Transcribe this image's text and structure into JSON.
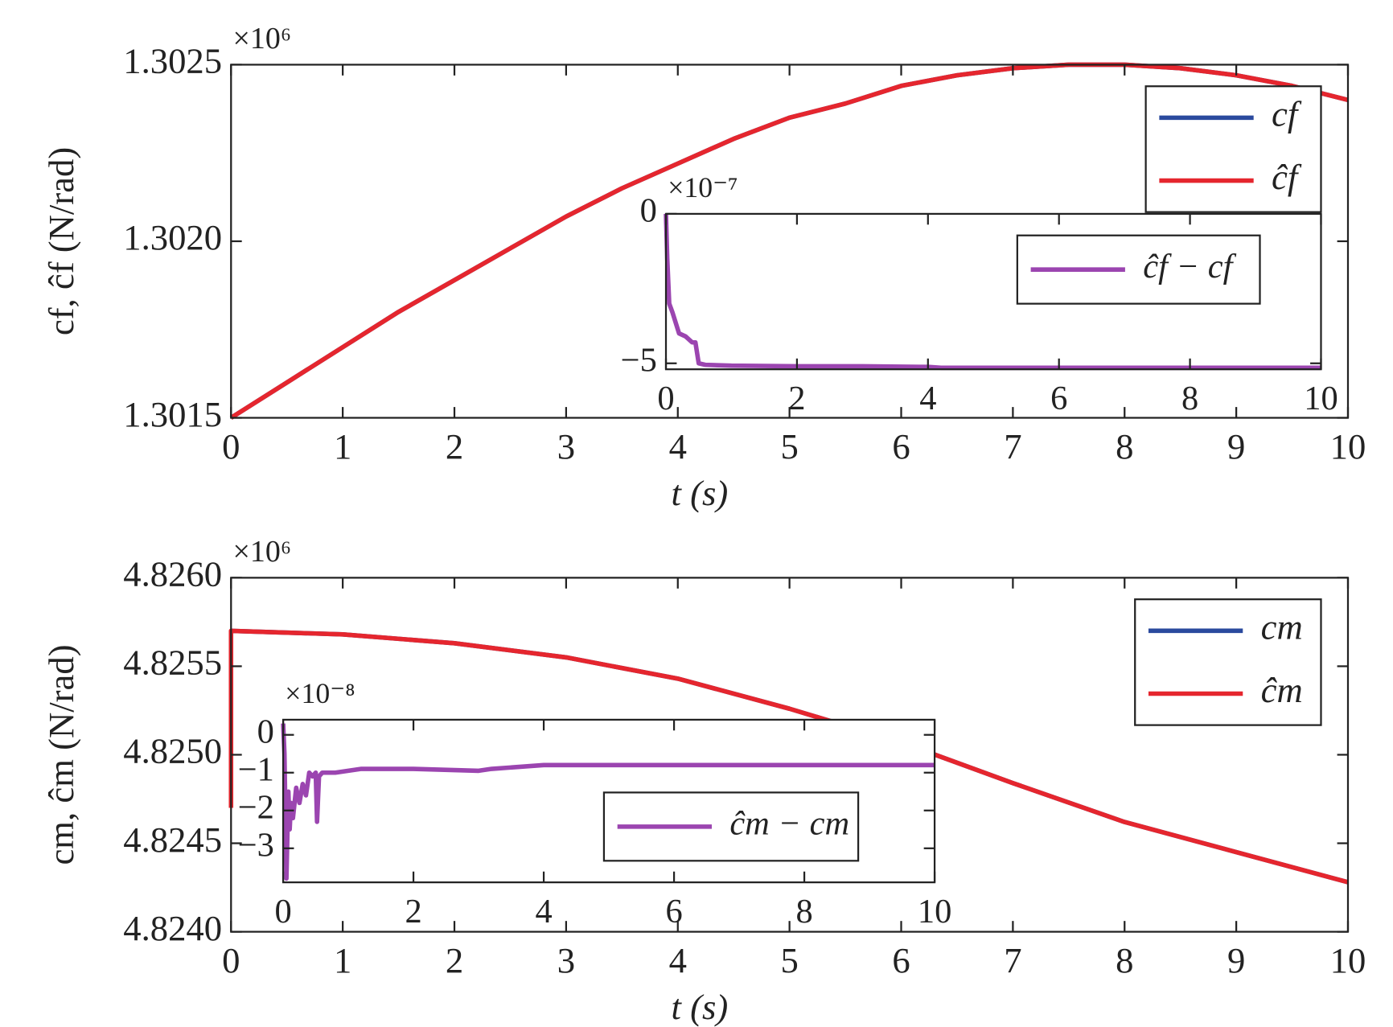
{
  "chart_data": [
    {
      "type": "line",
      "exponent_label": "×10⁶",
      "xlabel": "t (s)",
      "ylabel": "cf, ĉf (N/rad)",
      "xlim": [
        0,
        10
      ],
      "xticks": [
        0,
        1,
        2,
        3,
        4,
        5,
        6,
        7,
        8,
        9,
        10
      ],
      "ylim": [
        1.3015,
        1.3025
      ],
      "yticks": [
        1.3015,
        {
          "value": 1.302,
          "label": "1.3020"
        },
        1.3025
      ],
      "legend": "upper right",
      "series": [
        {
          "name": "cf",
          "color": "#2b4a9e",
          "x": [
            0,
            0.5,
            1,
            1.5,
            2,
            2.5,
            3,
            3.5,
            4,
            4.5,
            5,
            5.5,
            6,
            6.5,
            7,
            7.5,
            8,
            8.5,
            9,
            9.5,
            10
          ],
          "values": [
            1.3015,
            1.3016,
            1.3017,
            1.3018,
            1.30189,
            1.30198,
            1.30207,
            1.30215,
            1.30222,
            1.30229,
            1.30235,
            1.30239,
            1.30244,
            1.30247,
            1.30249,
            1.3025,
            1.3025,
            1.30249,
            1.30247,
            1.30244,
            1.3024
          ]
        },
        {
          "name": "ĉf",
          "color": "#e5262e",
          "x": [
            0,
            0.5,
            1,
            1.5,
            2,
            2.5,
            3,
            3.5,
            4,
            4.5,
            5,
            5.5,
            6,
            6.5,
            7,
            7.5,
            8,
            8.5,
            9,
            9.5,
            10
          ],
          "values": [
            1.3015,
            1.3016,
            1.3017,
            1.3018,
            1.30189,
            1.30198,
            1.30207,
            1.30215,
            1.30222,
            1.30229,
            1.30235,
            1.30239,
            1.30244,
            1.30247,
            1.30249,
            1.3025,
            1.3025,
            1.30249,
            1.30247,
            1.30244,
            1.3024
          ]
        }
      ]
    },
    {
      "type": "line",
      "exponent_label": "×10⁶",
      "xlabel": "t (s)",
      "ylabel": "cm, ĉm (N/rad)",
      "xlim": [
        0,
        10
      ],
      "xticks": [
        0,
        1,
        2,
        3,
        4,
        5,
        6,
        7,
        8,
        9,
        10
      ],
      "ylim": [
        4.824,
        4.826
      ],
      "yticks": [
        {
          "value": 4.824,
          "label": "4.8240"
        },
        4.8245,
        {
          "value": 4.825,
          "label": "4.8250"
        },
        4.8255,
        {
          "value": 4.826,
          "label": "4.8260"
        }
      ],
      "legend": "upper right",
      "series": [
        {
          "name": "cm",
          "color": "#2b4a9e",
          "x": [
            0,
            1,
            2,
            3,
            4,
            5,
            6,
            7,
            8,
            9,
            10
          ],
          "values": [
            4.8257,
            4.82568,
            4.82563,
            4.82555,
            4.82543,
            4.82526,
            4.82507,
            4.82484,
            4.82462,
            4.82445,
            4.82428
          ]
        },
        {
          "name": "ĉm",
          "color": "#e5262e",
          "x": [
            0,
            0,
            1,
            2,
            3,
            4,
            5,
            6,
            7,
            8,
            9,
            10
          ],
          "values": [
            4.8247,
            4.8257,
            4.82568,
            4.82563,
            4.82555,
            4.82543,
            4.82526,
            4.82507,
            4.82484,
            4.82462,
            4.82445,
            4.82428
          ]
        }
      ]
    },
    {
      "type": "line",
      "exponent_label": "×10⁻⁷",
      "xlim": [
        0,
        10
      ],
      "xticks": [
        0,
        2,
        4,
        6,
        8,
        10
      ],
      "ylim": [
        -5.2,
        0
      ],
      "yticks": [
        {
          "value": -5,
          "label": "−5"
        },
        0
      ],
      "legend": "upper right",
      "series": [
        {
          "name": "ĉf − cf",
          "color": "#9b45b0",
          "x": [
            0,
            0.02,
            0.05,
            0.1,
            0.2,
            0.3,
            0.4,
            0.45,
            0.5,
            0.6,
            1,
            2,
            3,
            4,
            4.2,
            6,
            8,
            10
          ],
          "values": [
            0,
            -1.5,
            -3,
            -3.3,
            -4,
            -4.1,
            -4.3,
            -4.3,
            -5,
            -5.05,
            -5.08,
            -5.1,
            -5.1,
            -5.12,
            -5.15,
            -5.15,
            -5.15,
            -5.15
          ]
        }
      ]
    },
    {
      "type": "line",
      "exponent_label": "×10⁻⁸",
      "xlim": [
        0,
        10
      ],
      "xticks": [
        0,
        2,
        4,
        6,
        8,
        10
      ],
      "ylim": [
        -3.9,
        0.4
      ],
      "yticks": [
        {
          "value": -3,
          "label": "−3"
        },
        {
          "value": -2,
          "label": "−2"
        },
        {
          "value": -1,
          "label": "−1"
        },
        0
      ],
      "legend": "lower right",
      "series": [
        {
          "name": "ĉm − cm",
          "color": "#9b45b0",
          "x": [
            0,
            0.02,
            0.05,
            0.08,
            0.1,
            0.12,
            0.15,
            0.2,
            0.25,
            0.3,
            0.35,
            0.4,
            0.45,
            0.5,
            0.52,
            0.55,
            0.6,
            0.8,
            1,
            1.2,
            2,
            3,
            3.2,
            4,
            4.1,
            6,
            8,
            10
          ],
          "values": [
            0.3,
            -0.5,
            -3.8,
            -1.5,
            -2.5,
            -1.8,
            -2.2,
            -1.4,
            -1.8,
            -1.3,
            -1.6,
            -1,
            -1.1,
            -1,
            -2.3,
            -1.1,
            -1,
            -1,
            -0.95,
            -0.9,
            -0.9,
            -0.95,
            -0.9,
            -0.8,
            -0.8,
            -0.8,
            -0.8,
            -0.8
          ]
        }
      ]
    }
  ]
}
